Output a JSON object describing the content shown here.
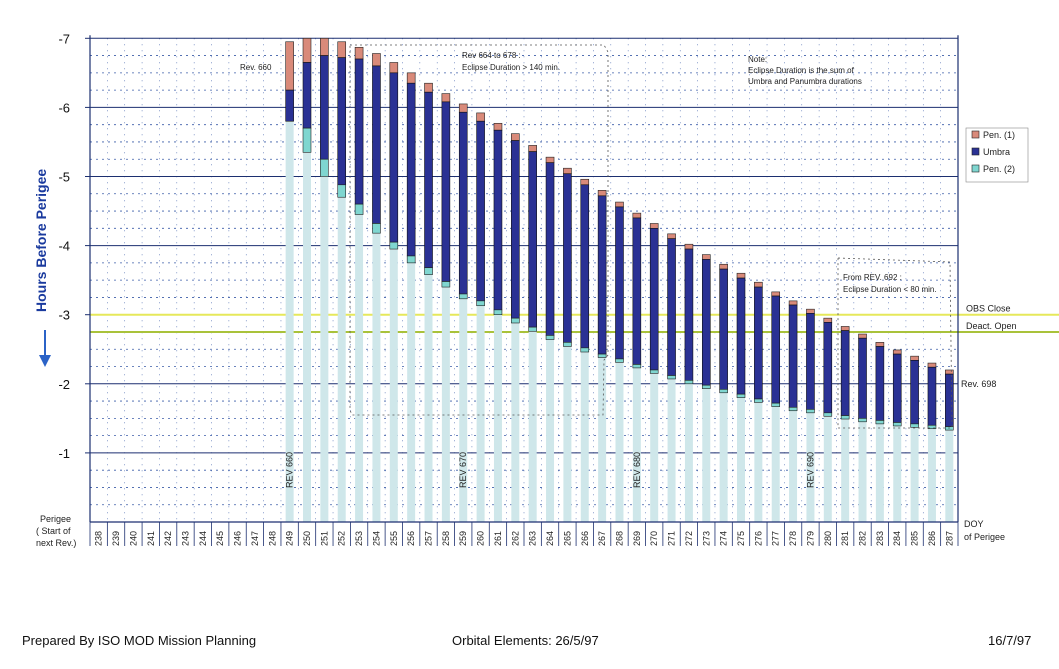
{
  "chart_data": {
    "type": "bar",
    "stacked": "floating",
    "ylabel": "Hours Before Perigee",
    "ylim": [
      0,
      -7
    ],
    "yticks": [
      "-1",
      "-2",
      "-3",
      "-4",
      "-5",
      "-6",
      "-7"
    ],
    "x_axis_title_left": "Perigee\n( Start of\nnext Rev.)",
    "x_axis_title_right": "DOY\nof Perigee",
    "categories": [
      "238",
      "239",
      "240",
      "241",
      "242",
      "243",
      "244",
      "245",
      "246",
      "247",
      "248",
      "249",
      "250",
      "251",
      "252",
      "253",
      "254",
      "255",
      "256",
      "257",
      "258",
      "259",
      "260",
      "261",
      "262",
      "263",
      "264",
      "265",
      "266",
      "267",
      "268",
      "269",
      "270",
      "271",
      "272",
      "273",
      "274",
      "275",
      "276",
      "277",
      "278",
      "279",
      "280",
      "281",
      "282",
      "283",
      "284",
      "285",
      "286",
      "287"
    ],
    "series": [
      {
        "name": "Pen. (1)",
        "color": "#d98a7a"
      },
      {
        "name": "Umbra",
        "color": "#2a3194"
      },
      {
        "name": "Pen. (2)",
        "color": "#7fd6d0"
      }
    ],
    "eclipses": [
      {
        "doy": "249",
        "start": 6.95,
        "pen1_end": 6.25,
        "umbra_end": 5.8,
        "end": 5.8
      },
      {
        "doy": "250",
        "start": 7.0,
        "pen1_end": 6.65,
        "umbra_end": 5.7,
        "end": 5.35
      },
      {
        "doy": "251",
        "start": 7.0,
        "pen1_end": 6.75,
        "umbra_end": 5.25,
        "end": 5.0
      },
      {
        "doy": "252",
        "start": 6.95,
        "pen1_end": 6.72,
        "umbra_end": 4.88,
        "end": 4.7
      },
      {
        "doy": "253",
        "start": 6.87,
        "pen1_end": 6.7,
        "umbra_end": 4.6,
        "end": 4.45
      },
      {
        "doy": "254",
        "start": 6.78,
        "pen1_end": 6.6,
        "umbra_end": 4.32,
        "end": 4.18
      },
      {
        "doy": "255",
        "start": 6.65,
        "pen1_end": 6.5,
        "umbra_end": 4.05,
        "end": 3.95
      },
      {
        "doy": "256",
        "start": 6.5,
        "pen1_end": 6.35,
        "umbra_end": 3.85,
        "end": 3.75
      },
      {
        "doy": "257",
        "start": 6.35,
        "pen1_end": 6.22,
        "umbra_end": 3.68,
        "end": 3.58
      },
      {
        "doy": "258",
        "start": 6.2,
        "pen1_end": 6.08,
        "umbra_end": 3.48,
        "end": 3.4
      },
      {
        "doy": "259",
        "start": 6.05,
        "pen1_end": 5.93,
        "umbra_end": 3.3,
        "end": 3.23
      },
      {
        "doy": "260",
        "start": 5.92,
        "pen1_end": 5.8,
        "umbra_end": 3.2,
        "end": 3.13
      },
      {
        "doy": "261",
        "start": 5.77,
        "pen1_end": 5.67,
        "umbra_end": 3.07,
        "end": 3.0
      },
      {
        "doy": "262",
        "start": 5.62,
        "pen1_end": 5.52,
        "umbra_end": 2.95,
        "end": 2.88
      },
      {
        "doy": "263",
        "start": 5.45,
        "pen1_end": 5.36,
        "umbra_end": 2.82,
        "end": 2.76
      },
      {
        "doy": "264",
        "start": 5.28,
        "pen1_end": 5.2,
        "umbra_end": 2.7,
        "end": 2.64
      },
      {
        "doy": "265",
        "start": 5.12,
        "pen1_end": 5.04,
        "umbra_end": 2.6,
        "end": 2.54
      },
      {
        "doy": "266",
        "start": 4.96,
        "pen1_end": 4.88,
        "umbra_end": 2.52,
        "end": 2.46
      },
      {
        "doy": "267",
        "start": 4.8,
        "pen1_end": 4.72,
        "umbra_end": 2.43,
        "end": 2.38
      },
      {
        "doy": "268",
        "start": 4.63,
        "pen1_end": 4.56,
        "umbra_end": 2.36,
        "end": 2.31
      },
      {
        "doy": "269",
        "start": 4.47,
        "pen1_end": 4.4,
        "umbra_end": 2.28,
        "end": 2.23
      },
      {
        "doy": "270",
        "start": 4.32,
        "pen1_end": 4.25,
        "umbra_end": 2.2,
        "end": 2.15
      },
      {
        "doy": "271",
        "start": 4.17,
        "pen1_end": 4.1,
        "umbra_end": 2.12,
        "end": 2.07
      },
      {
        "doy": "272",
        "start": 4.02,
        "pen1_end": 3.95,
        "umbra_end": 2.05,
        "end": 2.0
      },
      {
        "doy": "273",
        "start": 3.87,
        "pen1_end": 3.8,
        "umbra_end": 1.98,
        "end": 1.93
      },
      {
        "doy": "274",
        "start": 3.73,
        "pen1_end": 3.66,
        "umbra_end": 1.92,
        "end": 1.87
      },
      {
        "doy": "275",
        "start": 3.6,
        "pen1_end": 3.53,
        "umbra_end": 1.85,
        "end": 1.8
      },
      {
        "doy": "276",
        "start": 3.47,
        "pen1_end": 3.4,
        "umbra_end": 1.78,
        "end": 1.73
      },
      {
        "doy": "277",
        "start": 3.33,
        "pen1_end": 3.27,
        "umbra_end": 1.72,
        "end": 1.67
      },
      {
        "doy": "278",
        "start": 3.2,
        "pen1_end": 3.14,
        "umbra_end": 1.66,
        "end": 1.61
      },
      {
        "doy": "279",
        "start": 3.08,
        "pen1_end": 3.02,
        "umbra_end": 1.63,
        "end": 1.58
      },
      {
        "doy": "280",
        "start": 2.95,
        "pen1_end": 2.89,
        "umbra_end": 1.58,
        "end": 1.53
      },
      {
        "doy": "281",
        "start": 2.83,
        "pen1_end": 2.77,
        "umbra_end": 1.54,
        "end": 1.49
      },
      {
        "doy": "282",
        "start": 2.72,
        "pen1_end": 2.66,
        "umbra_end": 1.5,
        "end": 1.45
      },
      {
        "doy": "283",
        "start": 2.6,
        "pen1_end": 2.54,
        "umbra_end": 1.47,
        "end": 1.42
      },
      {
        "doy": "284",
        "start": 2.49,
        "pen1_end": 2.43,
        "umbra_end": 1.44,
        "end": 1.39
      },
      {
        "doy": "285",
        "start": 2.4,
        "pen1_end": 2.34,
        "umbra_end": 1.42,
        "end": 1.37
      },
      {
        "doy": "286",
        "start": 2.3,
        "pen1_end": 2.24,
        "umbra_end": 1.4,
        "end": 1.35
      },
      {
        "doy": "287",
        "start": 2.2,
        "pen1_end": 2.14,
        "umbra_end": 1.38,
        "end": 1.33
      }
    ],
    "reference_lines": [
      {
        "label": "OBS Close",
        "value": 3.0,
        "color": "#e6e85a"
      },
      {
        "label": "Deact. Open",
        "value": 2.75,
        "color": "#a9c23a"
      }
    ],
    "rev_labels": [
      {
        "text": "REV 660",
        "doy": "249"
      },
      {
        "text": "REV 670",
        "doy": "259"
      },
      {
        "text": "REV 680",
        "doy": "269"
      },
      {
        "text": "REV 690",
        "doy": "279"
      }
    ],
    "annotations": {
      "rev660": "Rev. 660",
      "rev664_line1": "Rev 664 to 678 :",
      "rev664_line2": "Eclipse Duration > 140 min.",
      "note_line1": "Note:",
      "note_line2": "Eclipse Duration is the sum of",
      "note_line3": "Umbra and Panumbra durations",
      "from692_line1": "From REV. 692 :",
      "from692_line2": "Eclipse Duration < 80 min.",
      "rev698": "Rev. 698"
    },
    "legend_placement": "right"
  },
  "footer": {
    "left": "Prepared By ISO MOD Mission Planning",
    "center": "Orbital Elements: 26/5/97",
    "right": "16/7/97"
  }
}
